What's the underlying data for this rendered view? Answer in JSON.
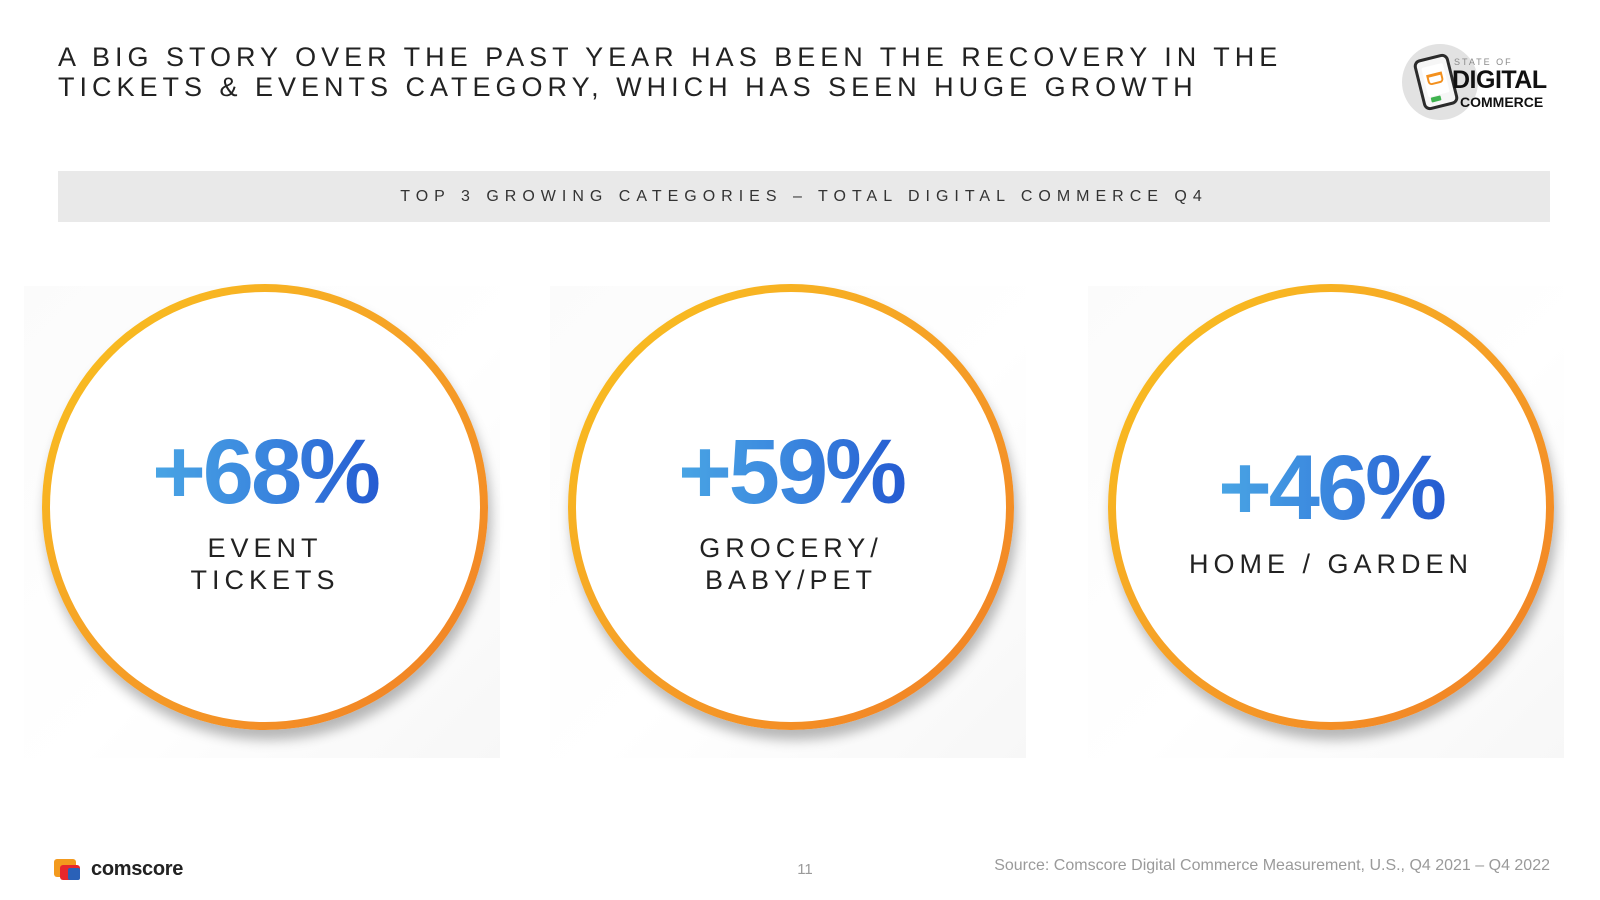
{
  "headline": {
    "line1": "A BIG STORY OVER THE PAST YEAR HAS BEEN THE RECOVERY IN THE",
    "line2": "TICKETS & EVENTS CATEGORY, WHICH HAS SEEN HUGE GROWTH"
  },
  "logo": {
    "state_of": "STATE OF",
    "digital": "DIGITAL",
    "commerce": "COMMERCE"
  },
  "chart_data": {
    "type": "table",
    "title": "TOP 3 GROWING CATEGORIES – TOTAL DIGITAL COMMERCE Q4",
    "unit": "%",
    "items": [
      {
        "category": "EVENT TICKETS",
        "label_lines": [
          "EVENT",
          "TICKETS"
        ],
        "value": 68,
        "display": "+68%"
      },
      {
        "category": "GROCERY/ BABY/PET",
        "label_lines": [
          "GROCERY/",
          "BABY/PET"
        ],
        "value": 59,
        "display": "+59%"
      },
      {
        "category": "HOME / GARDEN",
        "label_lines": [
          "HOME / GARDEN"
        ],
        "value": 46,
        "display": "+46%"
      }
    ]
  },
  "colors": {
    "ring_start": "#f9c41e",
    "ring_end": "#f17d26",
    "value_start": "#57c1ea",
    "value_end": "#1235c6",
    "banner_bg": "#e9e9e9"
  },
  "footer": {
    "brand": "comscore",
    "page_number": "11",
    "source": "Source: Comscore Digital Commerce Measurement, U.S., Q4 2021 – Q4 2022"
  }
}
